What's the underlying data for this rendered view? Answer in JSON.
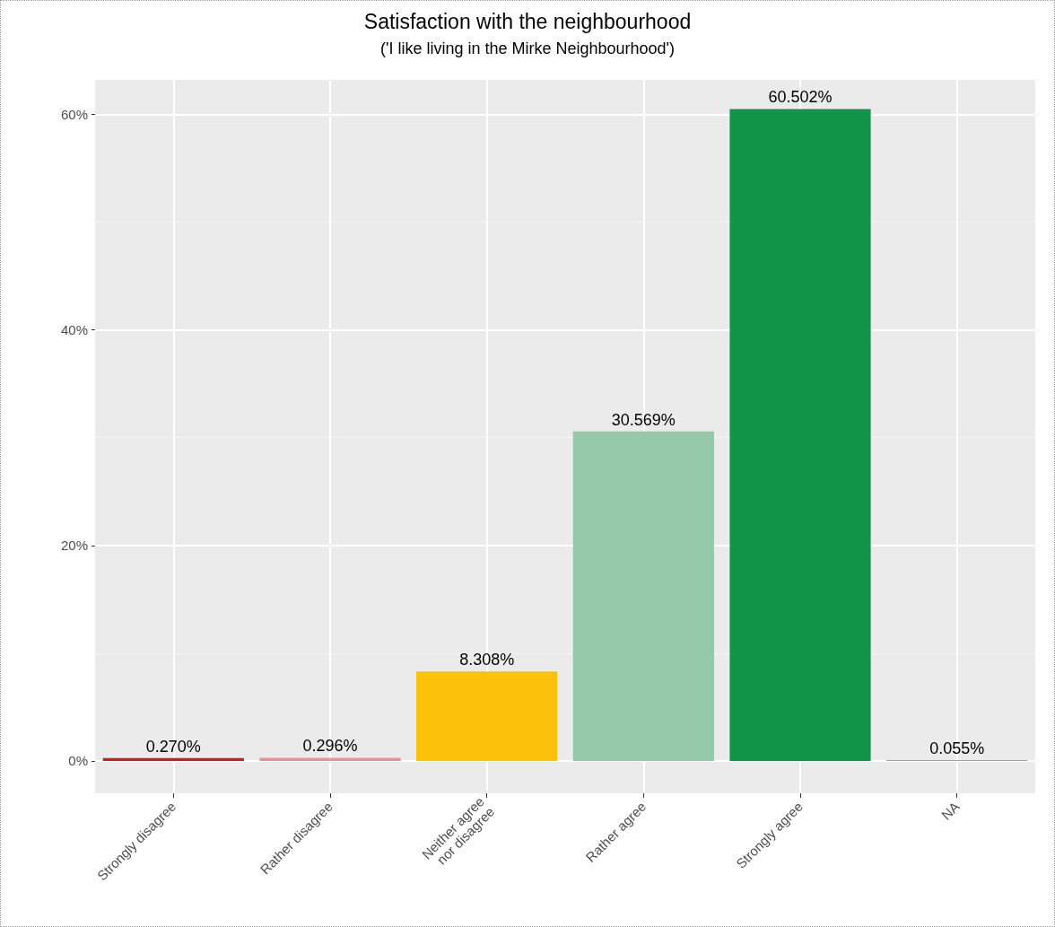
{
  "chart_data": {
    "type": "bar",
    "title": "Satisfaction with the neighbourhood",
    "subtitle": "('I like living in the Mirke Neighbourhood')",
    "categories": [
      "Strongly disagree",
      "Rather disagree",
      "Neither agree\nnor disagree",
      "Rather agree",
      "Strongly agree",
      "NA"
    ],
    "values": [
      0.27,
      0.296,
      8.308,
      30.569,
      60.502,
      0.055
    ],
    "value_labels": [
      "0.270%",
      "0.296%",
      "8.308%",
      "30.569%",
      "60.502%",
      "0.055%"
    ],
    "colors": [
      "#d7191c",
      "#ec8f98",
      "#fcc10a",
      "#95c8a8",
      "#11954a",
      "#7f7f7f"
    ],
    "ylim": [
      -3.0,
      63.2
    ],
    "yticks": [
      {
        "value": 0,
        "label": "0%"
      },
      {
        "value": 10,
        "label": null
      },
      {
        "value": 20,
        "label": "20%"
      },
      {
        "value": 30,
        "label": null
      },
      {
        "value": 40,
        "label": "40%"
      },
      {
        "value": 50,
        "label": null
      },
      {
        "value": 60,
        "label": "60%"
      }
    ],
    "grid": true
  }
}
